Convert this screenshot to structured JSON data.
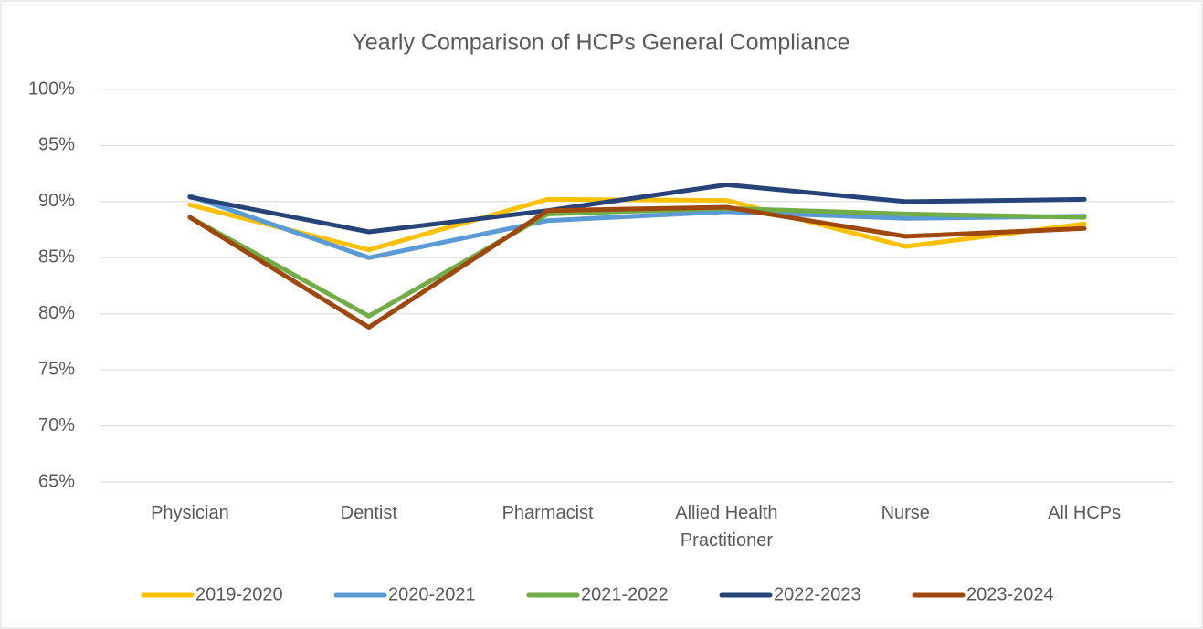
{
  "chart_data": {
    "type": "line",
    "title": "Yearly Comparison of HCPs General Compliance",
    "categories": [
      "Physician",
      "Dentist",
      "Pharmacist",
      "Allied Health Practitioner",
      "Nurse",
      "All HCPs"
    ],
    "series": [
      {
        "name": "2019-2020",
        "color": "#ffc000",
        "values": [
          89.7,
          85.7,
          90.2,
          90.1,
          86.0,
          88.0
        ]
      },
      {
        "name": "2020-2021",
        "color": "#5b9bd5",
        "values": [
          90.5,
          85.0,
          88.3,
          89.1,
          88.5,
          88.7
        ]
      },
      {
        "name": "2021-2022",
        "color": "#70ad47",
        "values": [
          88.6,
          79.8,
          88.9,
          89.4,
          88.9,
          88.6
        ]
      },
      {
        "name": "2022-2023",
        "color": "#264478",
        "values": [
          90.4,
          87.3,
          89.2,
          91.5,
          90.0,
          90.2
        ]
      },
      {
        "name": "2023-2024",
        "color": "#9e480e",
        "values": [
          88.6,
          78.8,
          89.2,
          89.5,
          86.9,
          87.6
        ]
      }
    ],
    "ylim": [
      65,
      100
    ],
    "yticks": [
      {
        "value": 65,
        "label": "65%"
      },
      {
        "value": 70,
        "label": "70%"
      },
      {
        "value": 75,
        "label": "75%"
      },
      {
        "value": 80,
        "label": "80%"
      },
      {
        "value": 85,
        "label": "85%"
      },
      {
        "value": 90,
        "label": "90%"
      },
      {
        "value": 95,
        "label": "95%"
      },
      {
        "value": 100,
        "label": "100%"
      }
    ],
    "grid": true,
    "legend": "bottom"
  }
}
